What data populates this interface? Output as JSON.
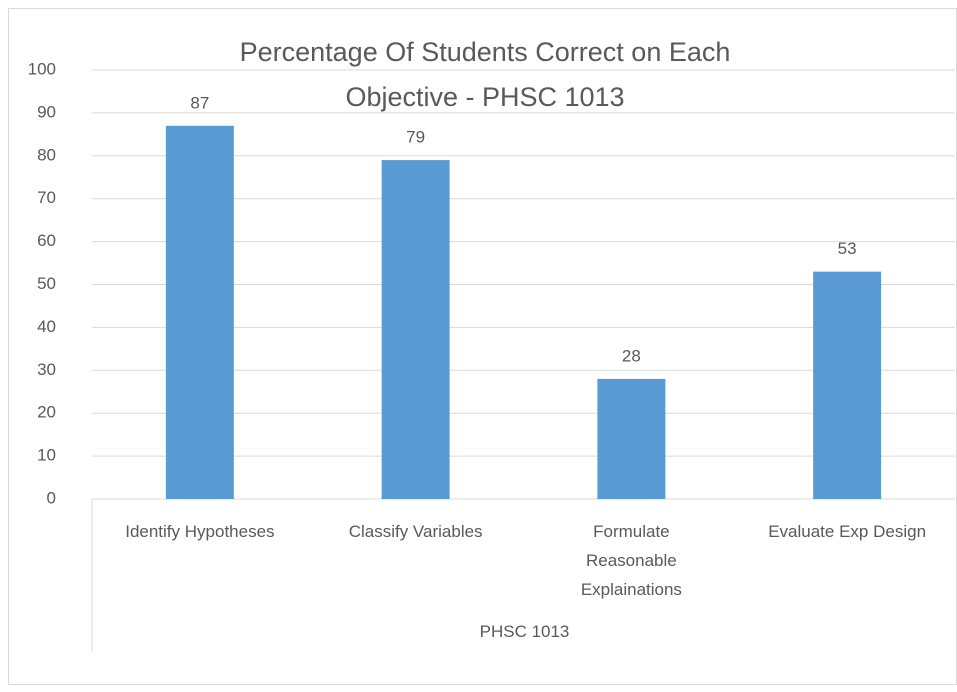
{
  "chart_data": {
    "type": "bar",
    "title": "Percentage Of Students Correct on Each Objective - PHSC 1013",
    "categories": [
      "Identify Hypotheses",
      "Classify Variables",
      "Formulate Reasonable Explainations",
      "Evaluate Exp Design"
    ],
    "values": [
      87,
      79,
      28,
      53
    ],
    "color": "#5b9bd5",
    "group_label": "PHSC 1013",
    "ylim": [
      0,
      100
    ],
    "yticks": [
      0,
      10,
      20,
      30,
      40,
      50,
      60,
      70,
      80,
      90,
      100
    ],
    "grid": true
  }
}
